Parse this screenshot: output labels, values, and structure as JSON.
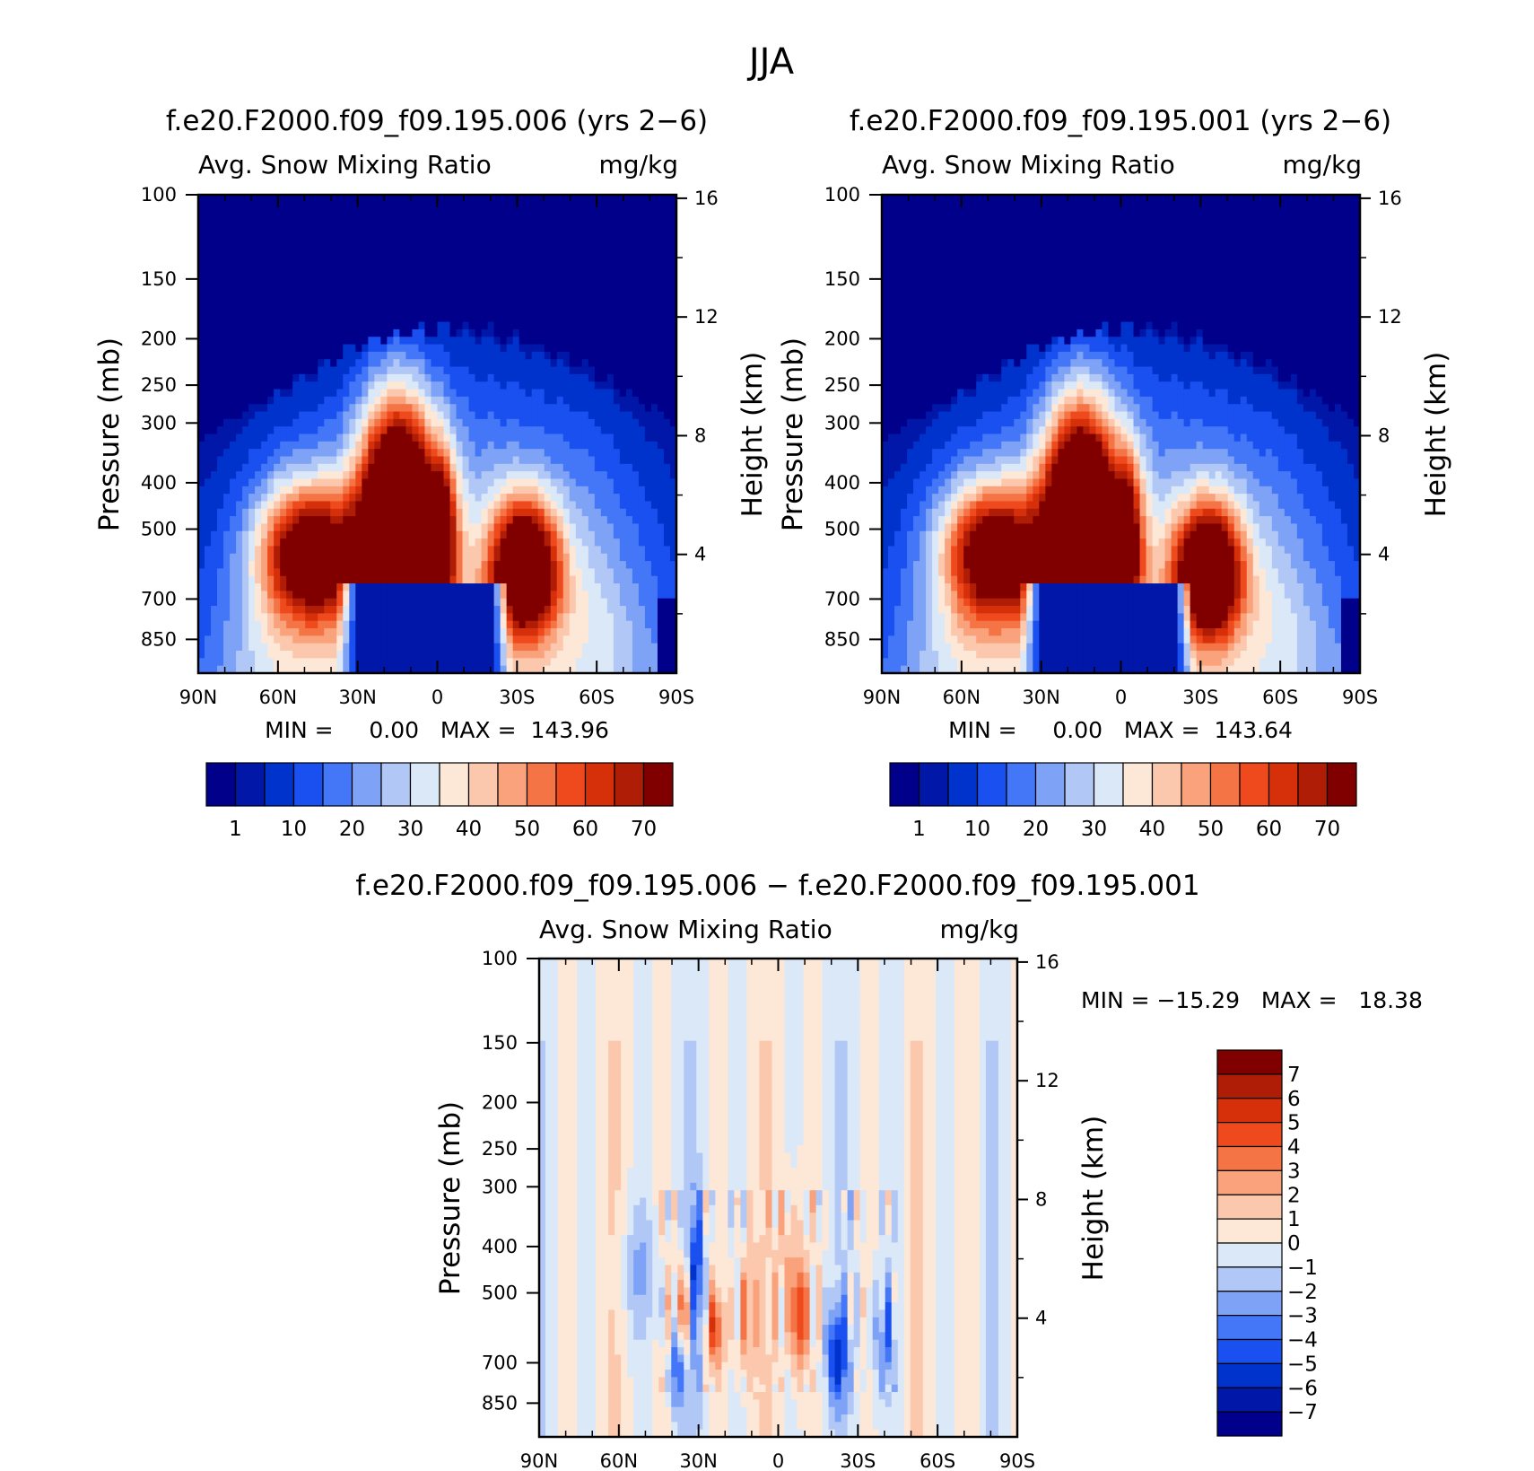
{
  "suptitle": "JJA",
  "colors": {
    "abs_scale": [
      "#00008a",
      "#0017a8",
      "#0033cc",
      "#1a4ff0",
      "#4477f7",
      "#7ea2f5",
      "#b1c8f7",
      "#dbe8f8",
      "#fde8d8",
      "#fcc8ad",
      "#f9a27b",
      "#f57445",
      "#ef4a1d",
      "#d6300a",
      "#b01d06",
      "#800000"
    ],
    "diff_scale": [
      "#00008a",
      "#0017a8",
      "#0033cc",
      "#1a4ff0",
      "#4477f7",
      "#7ea2f5",
      "#b1c8f7",
      "#dbe8f8",
      "#fde8d8",
      "#fcc8ad",
      "#f9a27b",
      "#f57445",
      "#ef4a1d",
      "#d6300a",
      "#b01d06",
      "#800000"
    ]
  },
  "chart_data": [
    {
      "type": "heatmap",
      "title": "f.e20.F2000.f09_f09.195.006 (yrs 2−6)",
      "subtitle_left": "Avg. Snow Mixing Ratio",
      "subtitle_right": "mg/kg",
      "xlabel": "",
      "ylabel": "Pressure (mb)",
      "ylabel_right": "Height (km)",
      "x_ticks": [
        "90N",
        "60N",
        "30N",
        "0",
        "30S",
        "60S",
        "90S"
      ],
      "y_ticks": [
        "100",
        "150",
        "200",
        "250",
        "300",
        "400",
        "500",
        "700",
        "850"
      ],
      "y_ticks_right": [
        "16",
        "12",
        "8",
        "4"
      ],
      "y_scale": "log",
      "ylim": [
        100,
        1000
      ],
      "stats": "MIN =     0.00   MAX =  143.96",
      "colorbar_labels": [
        "1",
        "10",
        "20",
        "30",
        "40",
        "50",
        "60",
        "70"
      ],
      "features": [
        {
          "lat": 48,
          "p": 560,
          "value": 65,
          "sx": 13,
          "sy": 0.1
        },
        {
          "lat": 15,
          "p": 470,
          "value": 100,
          "sx": 10,
          "sy": 0.17
        },
        {
          "lat": -2,
          "p": 520,
          "value": 45,
          "sx": 4,
          "sy": 0.12
        },
        {
          "lat": -33,
          "p": 600,
          "value": 75,
          "sx": 9,
          "sy": 0.1
        }
      ]
    },
    {
      "type": "heatmap",
      "title": "f.e20.F2000.f09_f09.195.001 (yrs 2−6)",
      "subtitle_left": "Avg. Snow Mixing Ratio",
      "subtitle_right": "mg/kg",
      "xlabel": "",
      "ylabel": "Pressure (mb)",
      "ylabel_right": "Height (km)",
      "x_ticks": [
        "90N",
        "60N",
        "30N",
        "0",
        "30S",
        "60S",
        "90S"
      ],
      "y_ticks": [
        "100",
        "150",
        "200",
        "250",
        "300",
        "400",
        "500",
        "700",
        "850"
      ],
      "y_ticks_right": [
        "16",
        "12",
        "8",
        "4"
      ],
      "y_scale": "log",
      "ylim": [
        100,
        1000
      ],
      "stats": "MIN =     0.00   MAX =  143.64",
      "colorbar_labels": [
        "1",
        "10",
        "20",
        "30",
        "40",
        "50",
        "60",
        "70"
      ],
      "features": [
        {
          "lat": 48,
          "p": 560,
          "value": 63,
          "sx": 13,
          "sy": 0.1
        },
        {
          "lat": 15,
          "p": 480,
          "value": 100,
          "sx": 10,
          "sy": 0.17
        },
        {
          "lat": -3,
          "p": 520,
          "value": 42,
          "sx": 4,
          "sy": 0.12
        },
        {
          "lat": -33,
          "p": 610,
          "value": 75,
          "sx": 9,
          "sy": 0.1
        }
      ]
    },
    {
      "type": "heatmap",
      "title": "f.e20.F2000.f09_f09.195.006 − f.e20.F2000.f09_f09.195.001",
      "subtitle_left": "Avg. Snow Mixing Ratio",
      "subtitle_right": "mg/kg",
      "xlabel": "",
      "ylabel": "Pressure (mb)",
      "ylabel_right": "Height (km)",
      "x_ticks": [
        "90N",
        "60N",
        "30N",
        "0",
        "30S",
        "60S",
        "90S"
      ],
      "y_ticks": [
        "100",
        "150",
        "200",
        "250",
        "300",
        "400",
        "500",
        "700",
        "850"
      ],
      "y_ticks_right": [
        "16",
        "12",
        "8",
        "4"
      ],
      "y_scale": "log",
      "ylim": [
        100,
        1000
      ],
      "stats": "MIN = −15.29   MAX =   18.38",
      "colorbar_labels": [
        "7",
        "6",
        "5",
        "4",
        "3",
        "2",
        "1",
        "0",
        "−1",
        "−2",
        "−3",
        "−4",
        "−5",
        "−6",
        "−7"
      ],
      "features": [
        {
          "lat": 35,
          "p": 560,
          "value": 5,
          "sx": 3,
          "sy": 0.08
        },
        {
          "lat": 31,
          "p": 500,
          "value": -6,
          "sx": 2,
          "sy": 0.12
        },
        {
          "lat": 24,
          "p": 600,
          "value": 4,
          "sx": 3,
          "sy": 0.06
        },
        {
          "lat": 38,
          "p": 700,
          "value": -5,
          "sx": 2,
          "sy": 0.07
        },
        {
          "lat": 12,
          "p": 560,
          "value": 3,
          "sx": 3,
          "sy": 0.1
        },
        {
          "lat": -8,
          "p": 560,
          "value": 5,
          "sx": 2,
          "sy": 0.08
        },
        {
          "lat": -22,
          "p": 680,
          "value": -5,
          "sx": 3,
          "sy": 0.07
        },
        {
          "lat": -40,
          "p": 620,
          "value": -3,
          "sx": 3,
          "sy": 0.08
        },
        {
          "lat": 52,
          "p": 450,
          "value": -2,
          "sx": 5,
          "sy": 0.1
        },
        {
          "lat": -4,
          "p": 440,
          "value": 2,
          "sx": 3,
          "sy": 0.12
        }
      ]
    }
  ]
}
